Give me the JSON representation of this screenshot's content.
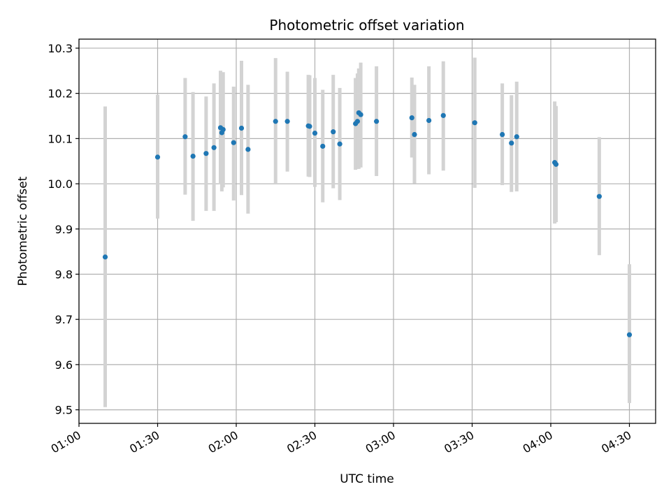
{
  "chart_data": {
    "type": "scatter",
    "title": "Photometric offset variation",
    "xlabel": "UTC time",
    "ylabel": "Photometric offset",
    "x_type": "time",
    "xlim": [
      "01:00",
      "04:40"
    ],
    "ylim": [
      9.47,
      10.32
    ],
    "x_ticks": [
      "01:00",
      "01:30",
      "02:00",
      "02:30",
      "03:00",
      "03:30",
      "04:00",
      "04:30"
    ],
    "y_ticks": [
      9.5,
      9.6,
      9.7,
      9.8,
      9.9,
      10.0,
      10.1,
      10.2,
      10.3
    ],
    "grid": true,
    "colors": {
      "point": "#1f77b4",
      "errorbar": "#d3d3d3",
      "grid": "#b0b0b0"
    },
    "points": [
      {
        "x": "01:10:00",
        "y": 9.838,
        "low": 9.506,
        "high": 10.171
      },
      {
        "x": "01:30:00",
        "y": 10.059,
        "low": 9.923,
        "high": 10.197
      },
      {
        "x": "01:40:30",
        "y": 10.104,
        "low": 9.976,
        "high": 10.234
      },
      {
        "x": "01:43:30",
        "y": 10.061,
        "low": 9.918,
        "high": 10.203
      },
      {
        "x": "01:48:30",
        "y": 10.067,
        "low": 9.94,
        "high": 10.193
      },
      {
        "x": "01:51:30",
        "y": 10.08,
        "low": 9.94,
        "high": 10.222
      },
      {
        "x": "01:54:00",
        "y": 10.124,
        "low": 9.999,
        "high": 10.25
      },
      {
        "x": "01:54:30",
        "y": 10.113,
        "low": 9.983,
        "high": 10.245
      },
      {
        "x": "01:55:00",
        "y": 10.12,
        "low": 9.992,
        "high": 10.247
      },
      {
        "x": "01:59:00",
        "y": 10.091,
        "low": 9.963,
        "high": 10.215
      },
      {
        "x": "02:02:00",
        "y": 10.123,
        "low": 9.975,
        "high": 10.272
      },
      {
        "x": "02:04:30",
        "y": 10.076,
        "low": 9.934,
        "high": 10.219
      },
      {
        "x": "02:15:00",
        "y": 10.138,
        "low": 10.0,
        "high": 10.278
      },
      {
        "x": "02:19:30",
        "y": 10.138,
        "low": 10.027,
        "high": 10.248
      },
      {
        "x": "02:27:30",
        "y": 10.128,
        "low": 10.016,
        "high": 10.241
      },
      {
        "x": "02:28:00",
        "y": 10.127,
        "low": 10.015,
        "high": 10.24
      },
      {
        "x": "02:30:00",
        "y": 10.112,
        "low": 9.993,
        "high": 10.234
      },
      {
        "x": "02:33:00",
        "y": 10.083,
        "low": 9.959,
        "high": 10.208
      },
      {
        "x": "02:37:00",
        "y": 10.115,
        "low": 9.99,
        "high": 10.241
      },
      {
        "x": "02:39:30",
        "y": 10.088,
        "low": 9.964,
        "high": 10.212
      },
      {
        "x": "02:45:30",
        "y": 10.133,
        "low": 10.031,
        "high": 10.234
      },
      {
        "x": "02:46:15",
        "y": 10.138,
        "low": 10.033,
        "high": 10.244
      },
      {
        "x": "02:46:45",
        "y": 10.157,
        "low": 10.033,
        "high": 10.255
      },
      {
        "x": "02:47:30",
        "y": 10.153,
        "low": 10.036,
        "high": 10.268
      },
      {
        "x": "02:53:30",
        "y": 10.138,
        "low": 10.017,
        "high": 10.26
      },
      {
        "x": "03:07:00",
        "y": 10.146,
        "low": 10.058,
        "high": 10.235
      },
      {
        "x": "03:08:00",
        "y": 10.109,
        "low": 10.001,
        "high": 10.219
      },
      {
        "x": "03:13:30",
        "y": 10.14,
        "low": 10.021,
        "high": 10.26
      },
      {
        "x": "03:19:00",
        "y": 10.151,
        "low": 10.029,
        "high": 10.271
      },
      {
        "x": "03:31:00",
        "y": 10.135,
        "low": 9.991,
        "high": 10.279
      },
      {
        "x": "03:41:30",
        "y": 10.109,
        "low": 9.997,
        "high": 10.222
      },
      {
        "x": "03:45:00",
        "y": 10.09,
        "low": 9.982,
        "high": 10.196
      },
      {
        "x": "03:47:00",
        "y": 10.104,
        "low": 9.983,
        "high": 10.226
      },
      {
        "x": "04:01:30",
        "y": 10.047,
        "low": 9.912,
        "high": 10.182
      },
      {
        "x": "04:02:00",
        "y": 10.043,
        "low": 9.915,
        "high": 10.172
      },
      {
        "x": "04:18:30",
        "y": 9.972,
        "low": 9.842,
        "high": 10.103
      },
      {
        "x": "04:30:00",
        "y": 9.666,
        "low": 9.515,
        "high": 9.822
      }
    ]
  }
}
